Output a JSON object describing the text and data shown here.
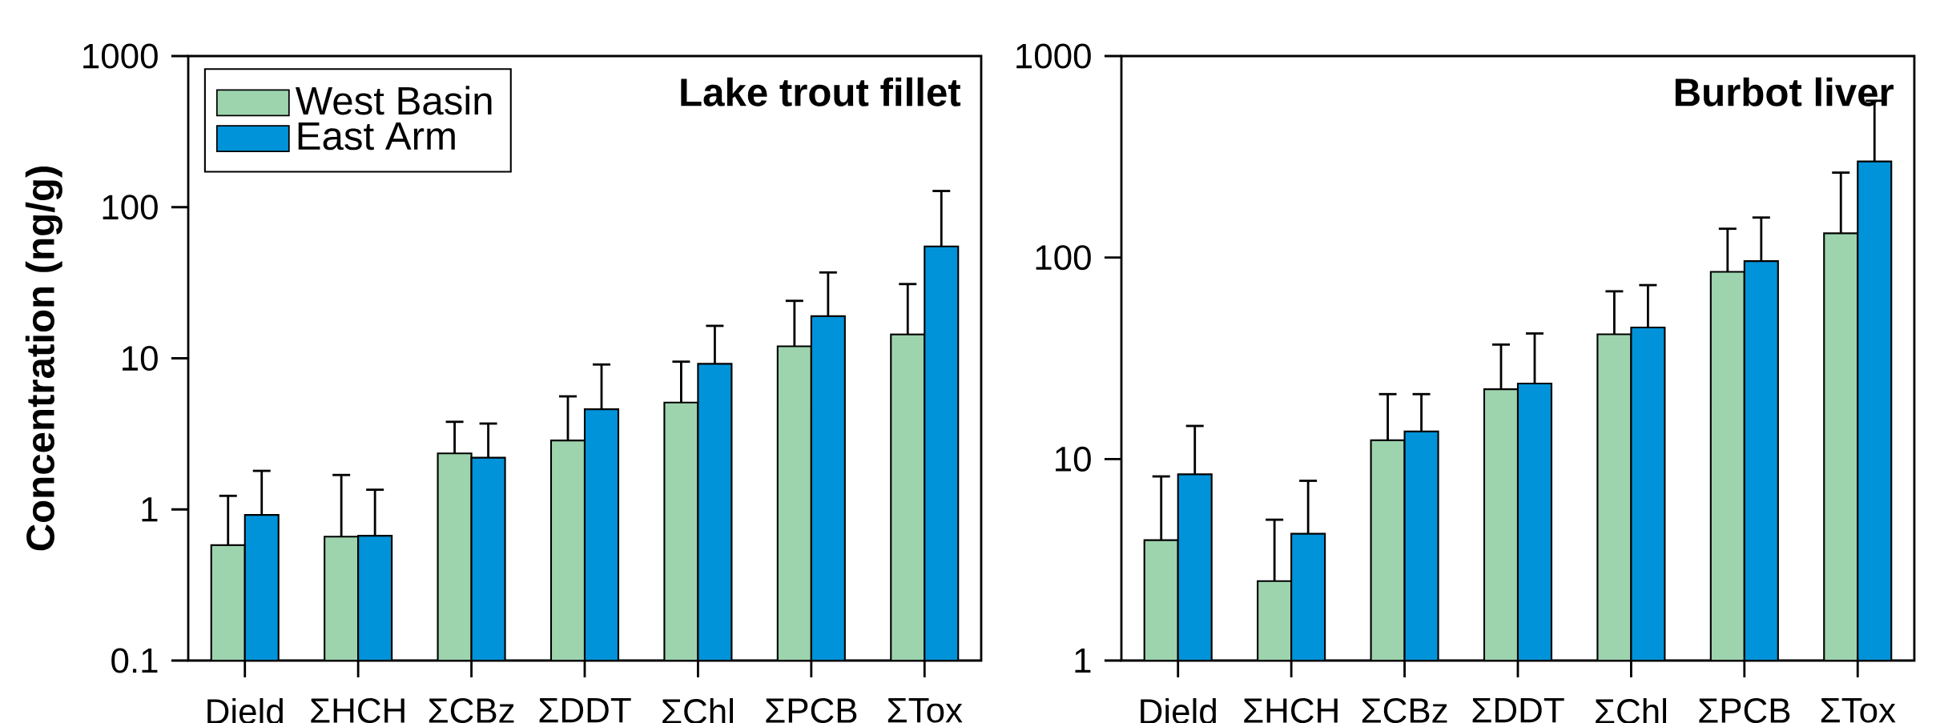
{
  "chart_data": [
    {
      "type": "bar",
      "title": "Lake trout fillet",
      "ylabel": "Concentration (ng/g)",
      "categories": [
        "Dield",
        "ΣHCH",
        "ΣCBz",
        "ΣDDT",
        "ΣChl",
        "ΣPCB",
        "ΣTox"
      ],
      "log": "y",
      "ylim": [
        0.1,
        1000
      ],
      "yticks": [
        0.1,
        1,
        10,
        100,
        1000
      ],
      "legend": "top left",
      "series": [
        {
          "name": "West Basin",
          "color": "#9dd4ae",
          "values": [
            0.58,
            0.66,
            2.35,
            2.86,
            5.1,
            12,
            14.4
          ],
          "errors": [
            [
              0.58,
              1.23
            ],
            [
              0.66,
              1.69
            ],
            [
              2.35,
              3.8
            ],
            [
              2.86,
              5.6
            ],
            [
              5.1,
              9.5
            ],
            [
              12,
              24
            ],
            [
              14.4,
              31
            ]
          ]
        },
        {
          "name": "East Arm",
          "color": "#0093d9",
          "values": [
            0.92,
            0.67,
            2.2,
            4.6,
            9.2,
            19,
            55
          ],
          "errors": [
            [
              0.92,
              1.8
            ],
            [
              0.67,
              1.35
            ],
            [
              2.2,
              3.7
            ],
            [
              4.6,
              9.1
            ],
            [
              9.2,
              16.4
            ],
            [
              19,
              37
            ],
            [
              55,
              128
            ]
          ]
        }
      ]
    },
    {
      "type": "bar",
      "title": "Burbot liver",
      "categories": [
        "Dield",
        "ΣHCH",
        "ΣCBz",
        "ΣDDT",
        "ΣChl",
        "ΣPCB",
        "ΣTox"
      ],
      "log": "y",
      "ylim": [
        1,
        1000
      ],
      "yticks": [
        1,
        10,
        100,
        1000
      ],
      "series": [
        {
          "color": "#9dd4ae",
          "values": [
            3.96,
            2.48,
            12.4,
            22.2,
            41.6,
            85,
            132
          ],
          "errors": [
            [
              3.96,
              8.2
            ],
            [
              2.48,
              5.0
            ],
            [
              12.4,
              21
            ],
            [
              22.2,
              37
            ],
            [
              41.6,
              68
            ],
            [
              85,
              139
            ],
            [
              132,
              264
            ]
          ]
        },
        {
          "color": "#0093d9",
          "values": [
            8.4,
            4.26,
            13.7,
            23.7,
            45,
            96,
            300
          ],
          "errors": [
            [
              8.4,
              14.6
            ],
            [
              4.26,
              7.8
            ],
            [
              13.7,
              21
            ],
            [
              23.7,
              42
            ],
            [
              45,
              73
            ],
            [
              96,
              158
            ],
            [
              300,
              600
            ]
          ]
        }
      ]
    }
  ]
}
